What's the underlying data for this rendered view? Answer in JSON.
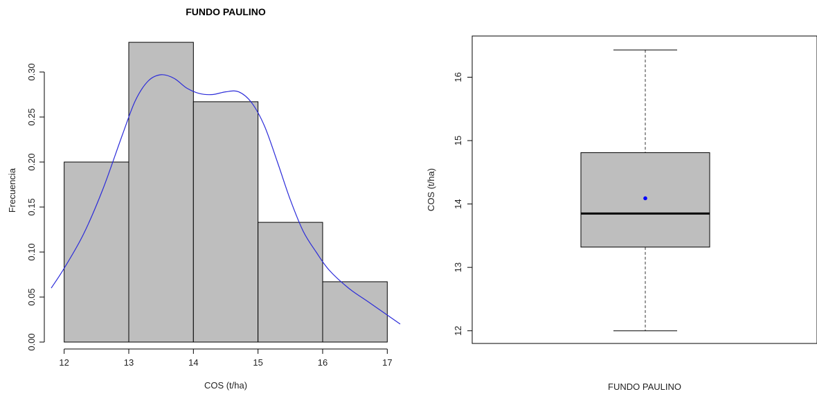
{
  "chart_data": [
    {
      "type": "histogram",
      "title": "FUNDO PAULINO",
      "xlabel": "COS (t/ha)",
      "ylabel": "Frecuencia",
      "xlim": [
        11.8,
        17.2
      ],
      "ylim": [
        0,
        0.34
      ],
      "x_ticks": [
        12,
        13,
        14,
        15,
        16,
        17
      ],
      "y_ticks": [
        "0.00",
        "0.05",
        "0.10",
        "0.15",
        "0.20",
        "0.25",
        "0.30"
      ],
      "bins": [
        {
          "from": 12,
          "to": 13,
          "value": 0.2
        },
        {
          "from": 13,
          "to": 14,
          "value": 0.333
        },
        {
          "from": 14,
          "to": 15,
          "value": 0.267
        },
        {
          "from": 15,
          "to": 16,
          "value": 0.133
        },
        {
          "from": 16,
          "to": 17,
          "value": 0.067
        }
      ],
      "density": {
        "name": "",
        "x": [
          11.8,
          12.0,
          12.3,
          12.6,
          12.9,
          13.1,
          13.3,
          13.5,
          13.7,
          13.9,
          14.1,
          14.3,
          14.5,
          14.7,
          14.9,
          15.1,
          15.3,
          15.5,
          15.7,
          15.9,
          16.1,
          16.4,
          16.7,
          17.0,
          17.2
        ],
        "y": [
          0.06,
          0.082,
          0.12,
          0.17,
          0.23,
          0.268,
          0.29,
          0.297,
          0.293,
          0.282,
          0.276,
          0.275,
          0.278,
          0.278,
          0.266,
          0.24,
          0.2,
          0.158,
          0.123,
          0.1,
          0.08,
          0.06,
          0.045,
          0.03,
          0.02
        ]
      },
      "bar_fill": "#bebebe",
      "bar_stroke": "#000000",
      "density_color": "#2b2bd9",
      "grid": false
    },
    {
      "type": "boxplot",
      "title": "",
      "xlabel": "FUNDO PAULINO",
      "ylabel": "COS (t/ha)",
      "ylim": [
        11.8,
        16.65
      ],
      "y_ticks": [
        12,
        13,
        14,
        15,
        16
      ],
      "stats": {
        "whisker_low": 12.0,
        "q1": 13.32,
        "median": 13.85,
        "q3": 14.81,
        "whisker_high": 16.43,
        "mean": 14.09
      },
      "box_fill": "#bebebe",
      "mean_color": "#0000ff",
      "grid": false
    }
  ]
}
